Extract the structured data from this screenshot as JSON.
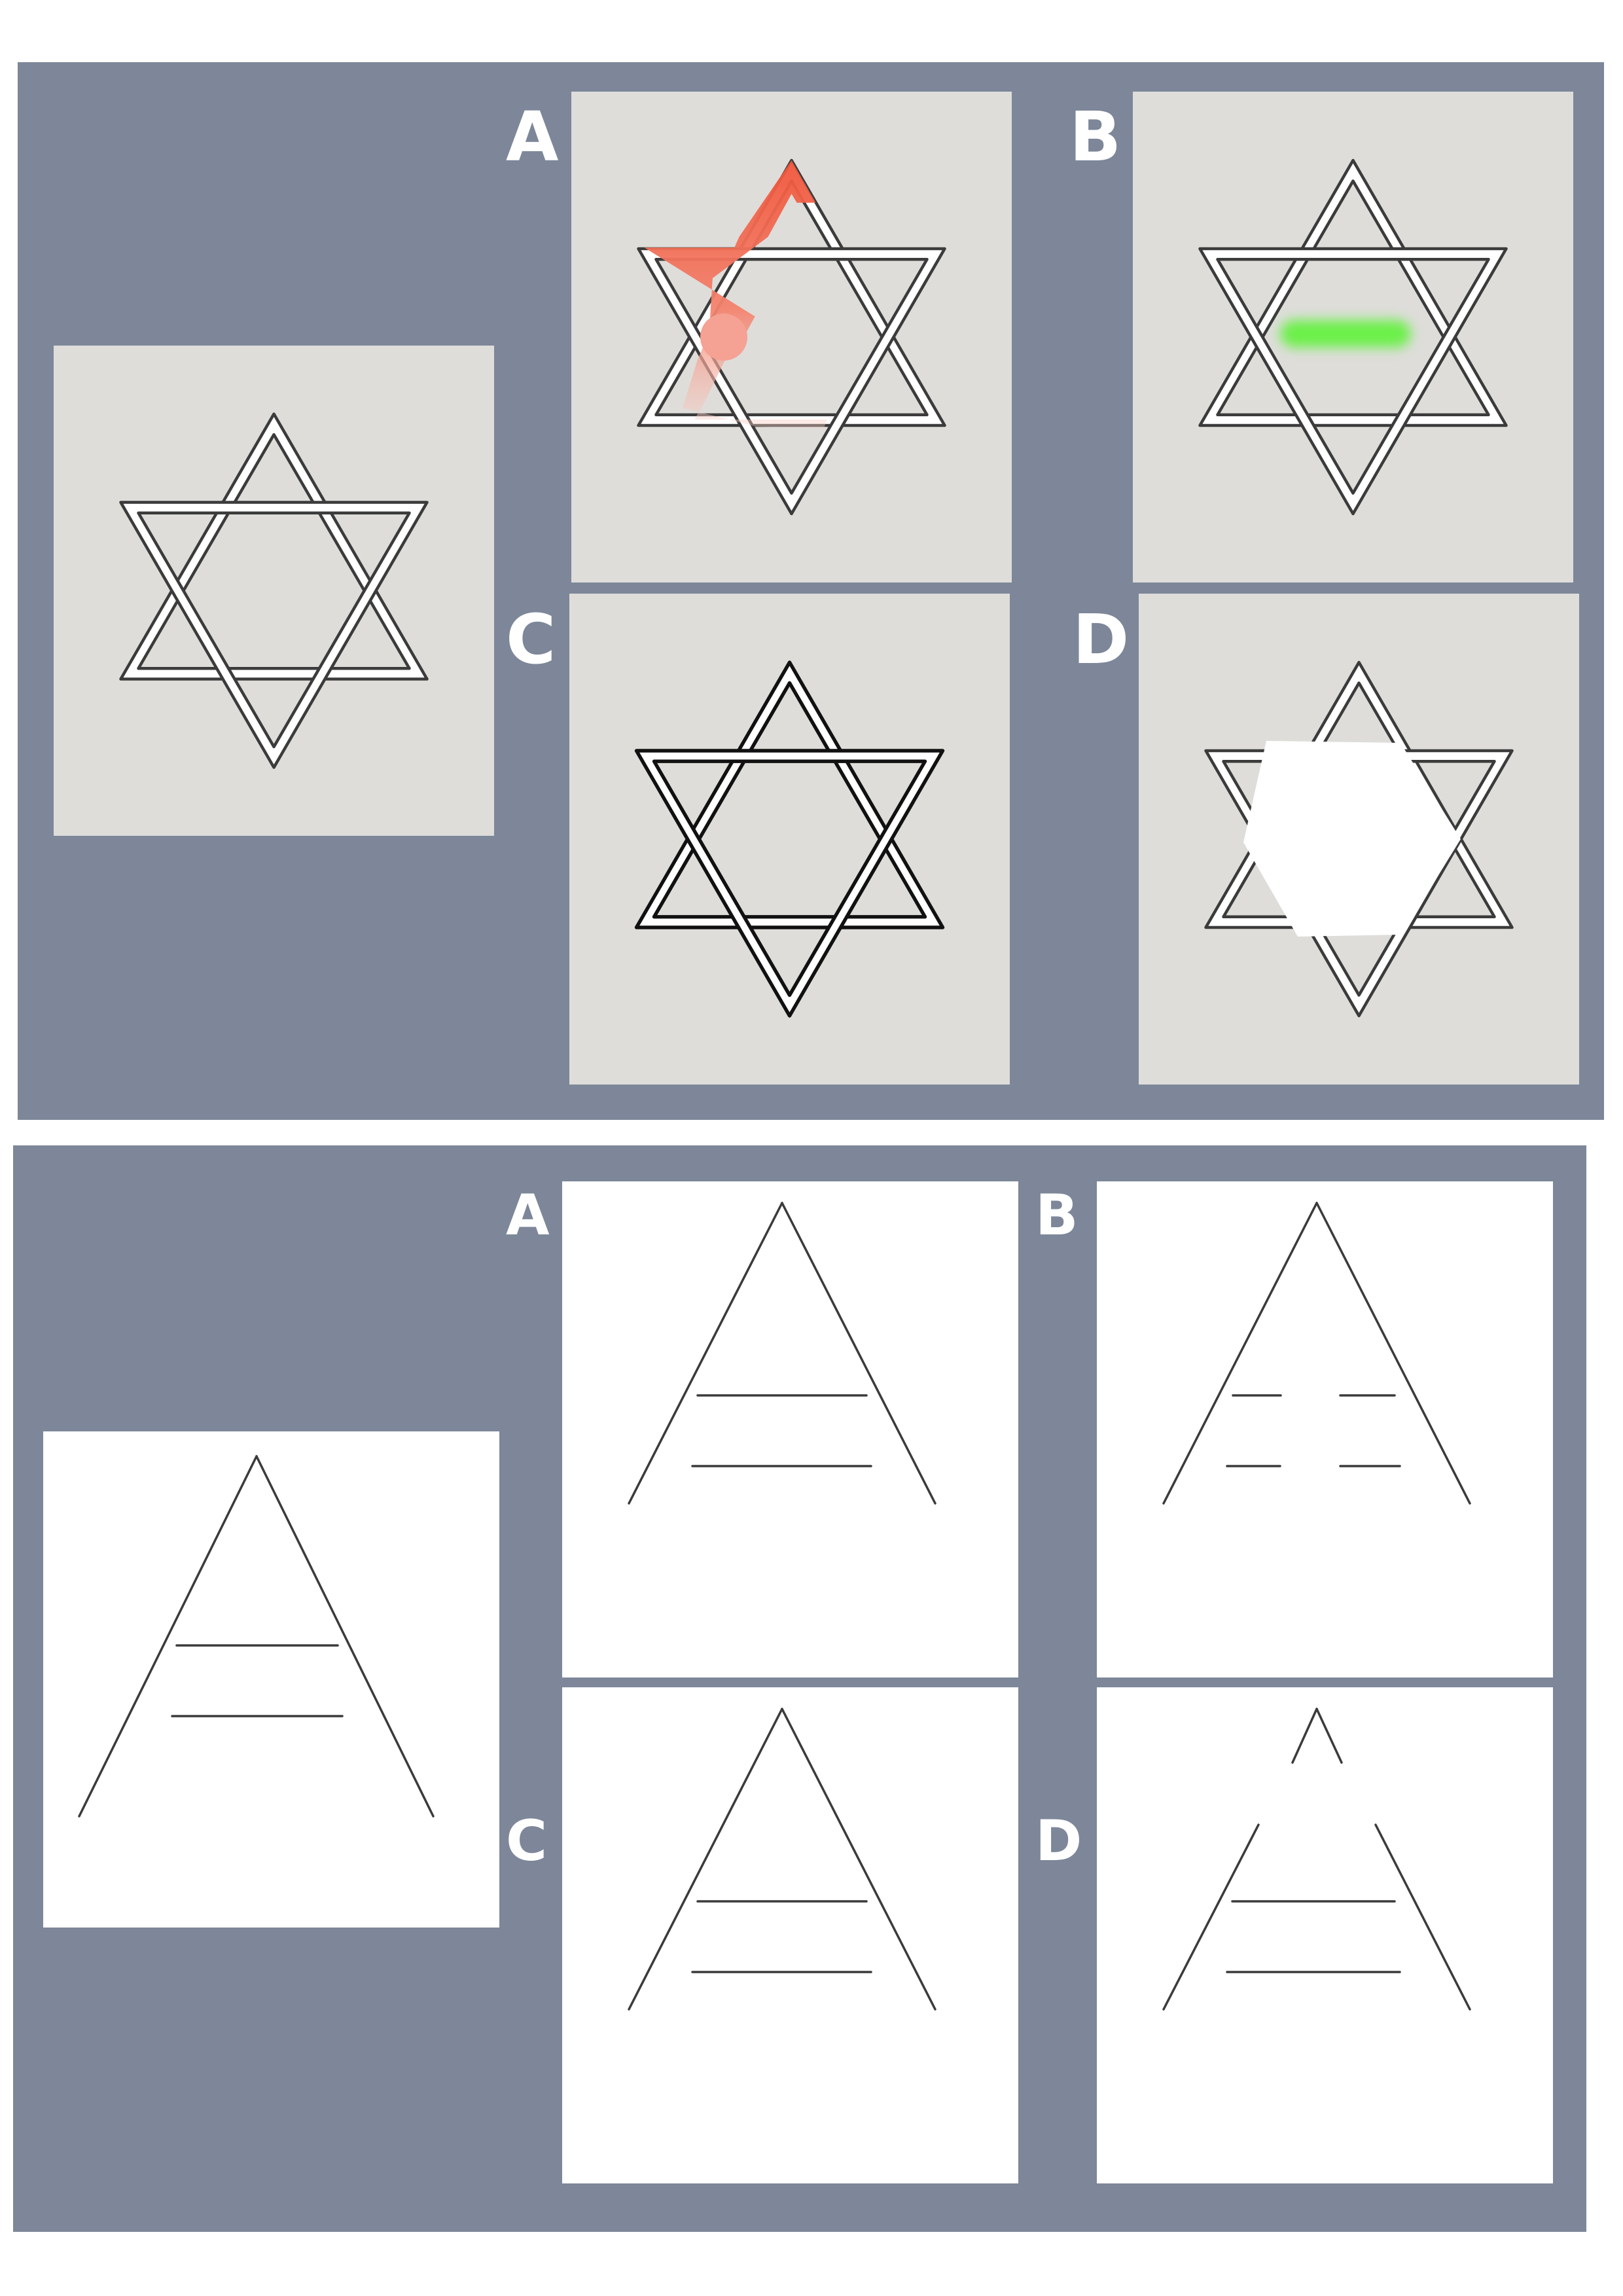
{
  "top_section": {
    "options": [
      {
        "label": "A"
      },
      {
        "label": "B"
      },
      {
        "label": "C"
      },
      {
        "label": "D"
      }
    ],
    "colors": {
      "background": "#7d8799",
      "tile": "#deddda",
      "outline": "#3b3b3b",
      "band_fill": "#ffffff",
      "option_a_highlight": "#f0553a",
      "option_b_highlight": "#6cf04a",
      "option_d_cover": "#ffffff"
    }
  },
  "bottom_section": {
    "options": [
      {
        "label": "A"
      },
      {
        "label": "B"
      },
      {
        "label": "C"
      },
      {
        "label": "D"
      }
    ],
    "colors": {
      "background": "#7d8799",
      "tile": "#ffffff",
      "stroke": "#3b3b3b"
    }
  }
}
